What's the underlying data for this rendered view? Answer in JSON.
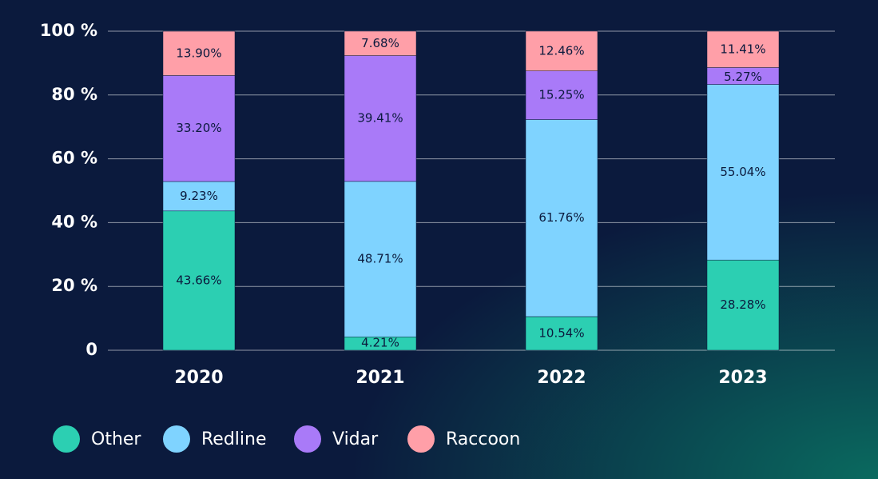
{
  "chart_data": {
    "type": "stacked_bar",
    "categories": [
      "2020",
      "2021",
      "2022",
      "2023"
    ],
    "series": [
      {
        "name": "Other",
        "color": "#2ccfb2",
        "values": [
          43.66,
          4.21,
          10.54,
          28.28
        ],
        "value_labels": [
          "43.66%",
          "4.21%",
          "10.54%",
          "28.28%"
        ]
      },
      {
        "name": "Redline",
        "color": "#7fd3ff",
        "values": [
          9.23,
          48.71,
          61.76,
          55.04
        ],
        "value_labels": [
          "9.23%",
          "48.71%",
          "61.76%",
          "55.04%"
        ]
      },
      {
        "name": "Vidar",
        "color": "#a97af8",
        "values": [
          33.2,
          39.41,
          15.25,
          5.27
        ],
        "value_labels": [
          "33.20%",
          "39.41%",
          "15.25%",
          "5.27%"
        ]
      },
      {
        "name": "Raccoon",
        "color": "#ff9fa8",
        "values": [
          13.9,
          7.68,
          12.46,
          11.41
        ],
        "value_labels": [
          "13.90%",
          "7.68%",
          "12.46%",
          "11.41%"
        ]
      }
    ],
    "ylim": [
      0,
      100
    ],
    "yticks": [
      0,
      {
        "value": 20,
        "label": "20 %"
      },
      {
        "value": 40,
        "label": "40 %"
      },
      {
        "value": 60,
        "label": "60 %"
      },
      {
        "value": 80,
        "label": "80 %"
      },
      {
        "value": 100,
        "label": "100 %"
      }
    ],
    "grid": true
  }
}
